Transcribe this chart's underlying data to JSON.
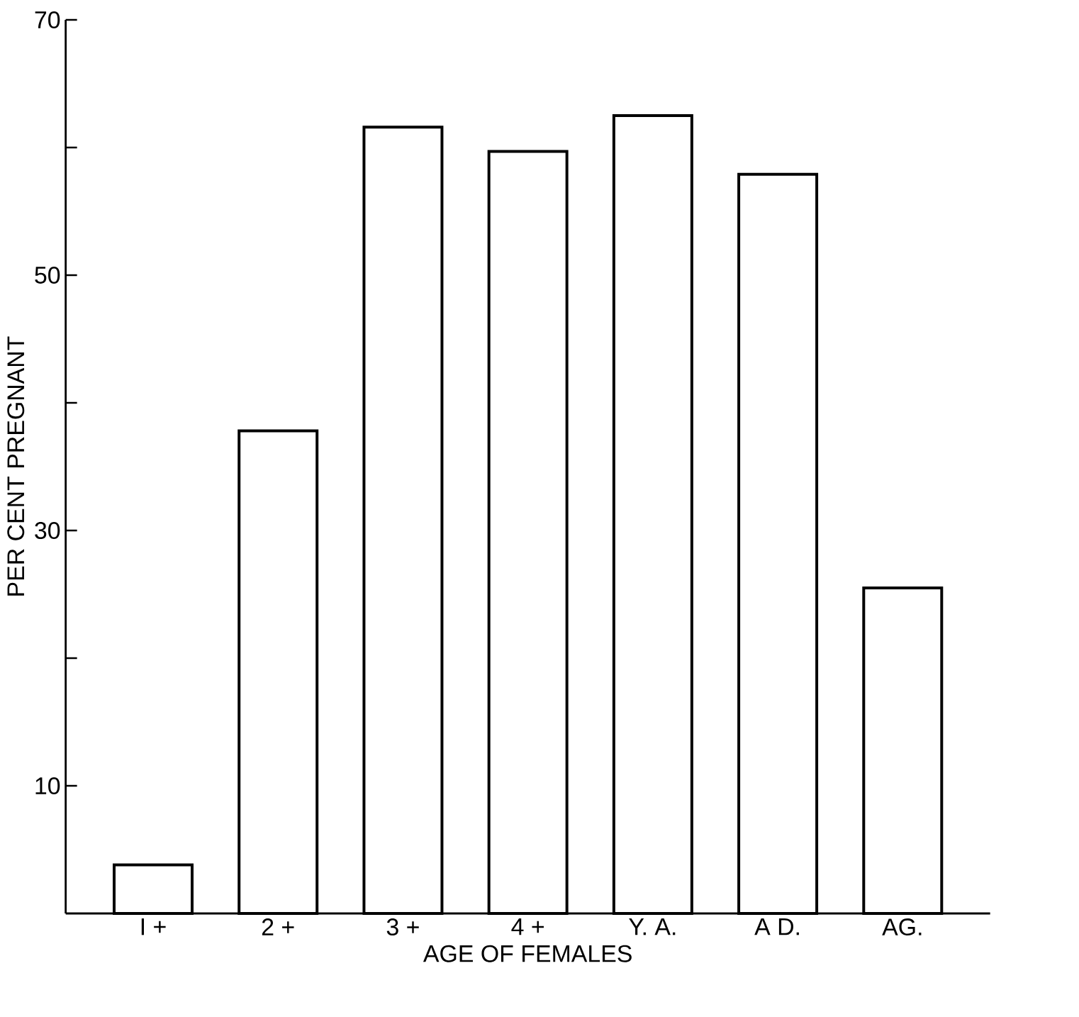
{
  "chart_data": {
    "type": "bar",
    "xlabel": "AGE OF FEMALES",
    "ylabel": "PER CENT PREGNANT",
    "categories": [
      "I +",
      "2 +",
      "3 +",
      "4 +",
      "Y. A.",
      "A D.",
      "AG."
    ],
    "values": [
      3.8,
      37.8,
      61.6,
      59.7,
      62.5,
      57.9,
      25.5
    ],
    "color": "#ffffff",
    "ylim": [
      0,
      70
    ],
    "yticks": [
      {
        "value": 10,
        "label": "10"
      },
      {
        "value": 20,
        "label": null
      },
      {
        "value": 30,
        "label": "30"
      },
      {
        "value": 40,
        "label": null
      },
      {
        "value": 50,
        "label": "50"
      },
      {
        "value": 60,
        "label": null
      },
      {
        "value": 70,
        "label": "70"
      }
    ],
    "grid": false
  }
}
